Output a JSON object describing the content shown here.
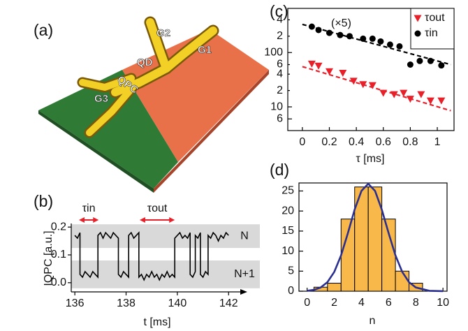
{
  "chart_data": [
    {
      "type": "image",
      "label": "(a)",
      "labels": [
        "G1",
        "G2",
        "G3",
        "QD",
        "QPC"
      ]
    },
    {
      "type": "line",
      "label": "(b)",
      "xlabel": "t [ms]",
      "ylabel": "IQPC [a.u.]",
      "color": "#000000",
      "xlim": [
        135.86,
        143.22
      ],
      "ylim": [
        -0.033,
        0.208
      ],
      "xticks": [
        136,
        138,
        140,
        142
      ],
      "yticks": [
        {
          "value": 0,
          "label": "0.0"
        },
        0.1,
        0.2
      ],
      "bands": [
        {
          "label": "N",
          "range": [
            0.125,
            0.21
          ]
        },
        {
          "label": "N+1",
          "range": [
            -0.02,
            0.08
          ]
        }
      ],
      "intervals": [
        {
          "label": "τin",
          "range": [
            136.16,
            136.93
          ]
        },
        {
          "label": "τout",
          "range": [
            138.53,
            139.9
          ]
        }
      ],
      "x": [
        136.0,
        136.1,
        136.2,
        136.2,
        136.3,
        136.4,
        136.5,
        136.6,
        136.7,
        136.8,
        136.9,
        136.9,
        137.0,
        137.1,
        137.2,
        137.3,
        137.4,
        137.5,
        137.6,
        137.7,
        137.7,
        137.8,
        137.9,
        138.0,
        138.1,
        138.1,
        138.2,
        138.3,
        138.4,
        138.5,
        138.5,
        138.6,
        138.7,
        138.8,
        138.9,
        139.0,
        139.1,
        139.2,
        139.3,
        139.4,
        139.5,
        139.6,
        139.7,
        139.8,
        139.9,
        139.9,
        140.0,
        140.1,
        140.2,
        140.3,
        140.4,
        140.5,
        140.5,
        140.6,
        140.7,
        140.7,
        140.8,
        140.9,
        140.9,
        141.0,
        141.1,
        141.2,
        141.2,
        141.3,
        141.4,
        141.5,
        141.6,
        141.7,
        141.8,
        141.9,
        142.0
      ],
      "values": [
        0.17,
        0.16,
        0.18,
        0.03,
        0.02,
        0.04,
        0.03,
        0.02,
        0.04,
        0.03,
        0.02,
        0.17,
        0.18,
        0.16,
        0.18,
        0.17,
        0.16,
        0.18,
        0.17,
        0.16,
        0.03,
        0.02,
        0.04,
        0.03,
        0.02,
        0.17,
        0.18,
        0.16,
        0.17,
        0.18,
        0.02,
        0.03,
        0.01,
        0.03,
        0.02,
        0.04,
        0.02,
        0.03,
        0.01,
        0.03,
        0.02,
        0.04,
        0.02,
        0.03,
        0.02,
        0.16,
        0.17,
        0.18,
        0.16,
        0.17,
        0.16,
        0.18,
        0.03,
        0.02,
        0.04,
        0.17,
        0.16,
        0.18,
        0.03,
        0.02,
        0.04,
        0.03,
        0.17,
        0.16,
        0.18,
        0.17,
        0.15,
        0.17,
        0.16,
        0.18,
        0.17
      ]
    },
    {
      "type": "scatter",
      "label": "(c)",
      "xlabel": "τ [ms]",
      "log_y": true,
      "annotation": "(×5)",
      "xlim": [
        -0.108,
        1.124
      ],
      "ylim": [
        3.66,
        650
      ],
      "xticks": [
        0,
        0.2,
        0.4,
        0.6,
        0.8,
        1.0
      ],
      "yticks": [
        {
          "value": 6,
          "label": "6"
        },
        10,
        {
          "value": 20,
          "label": "2"
        },
        {
          "value": 40,
          "label": "4"
        },
        {
          "value": 60,
          "label": "6"
        },
        100,
        {
          "value": 200,
          "label": "2"
        },
        {
          "value": 400,
          "label": "4"
        }
      ],
      "series": [
        {
          "name": "τout",
          "color": "#e8202a",
          "marker": "triangle-down",
          "x": [
            0.07,
            0.12,
            0.2,
            0.3,
            0.38,
            0.45,
            0.52,
            0.6,
            0.68,
            0.75,
            0.8,
            0.88,
            0.95,
            1.03
          ],
          "values": [
            62,
            57,
            45,
            42,
            30,
            26,
            25,
            18,
            17,
            18,
            14,
            17,
            13,
            13
          ]
        },
        {
          "name": "τin",
          "color": "#000000",
          "marker": "circle",
          "x": [
            0.07,
            0.12,
            0.2,
            0.28,
            0.35,
            0.45,
            0.52,
            0.58,
            0.65,
            0.72,
            0.8,
            0.87,
            0.95,
            1.03
          ],
          "values": [
            300,
            260,
            230,
            210,
            200,
            180,
            180,
            160,
            140,
            130,
            60,
            70,
            70,
            58
          ]
        }
      ],
      "fits": [
        {
          "color": "#e8202a",
          "x": [
            0,
            1.1
          ],
          "values": [
            55,
            8.5
          ]
        },
        {
          "color": "#000000",
          "x": [
            0,
            1.1
          ],
          "values": [
            330,
            60
          ]
        }
      ]
    },
    {
      "type": "histogram",
      "label": "(d)",
      "xlabel": "n",
      "color": "#f9b84a",
      "xlim": [
        -0.6,
        10.3
      ],
      "ylim": [
        0,
        27
      ],
      "xticks": [
        0,
        2,
        4,
        6,
        8,
        10
      ],
      "yticks": [
        0,
        5,
        10,
        15,
        20,
        25
      ],
      "bins": [
        0.5,
        1.5,
        2.5,
        3.5,
        4.5,
        5.5,
        6.5,
        7.5,
        8.5
      ],
      "values": [
        1,
        2,
        18,
        26,
        26,
        18,
        5,
        2
      ],
      "fit": {
        "color": "#2b2f8f",
        "x": [
          0,
          0.5,
          1,
          1.5,
          2,
          2.5,
          3,
          3.5,
          4,
          4.5,
          5,
          5.5,
          6,
          6.5,
          7,
          7.5,
          8,
          9,
          10
        ],
        "values": [
          0.1,
          0.33,
          0.93,
          2.27,
          4.83,
          8.95,
          14.46,
          20.37,
          25.03,
          26.8,
          25.03,
          20.37,
          14.46,
          8.95,
          4.83,
          2.27,
          0.93,
          0.1,
          0.01
        ]
      }
    }
  ]
}
